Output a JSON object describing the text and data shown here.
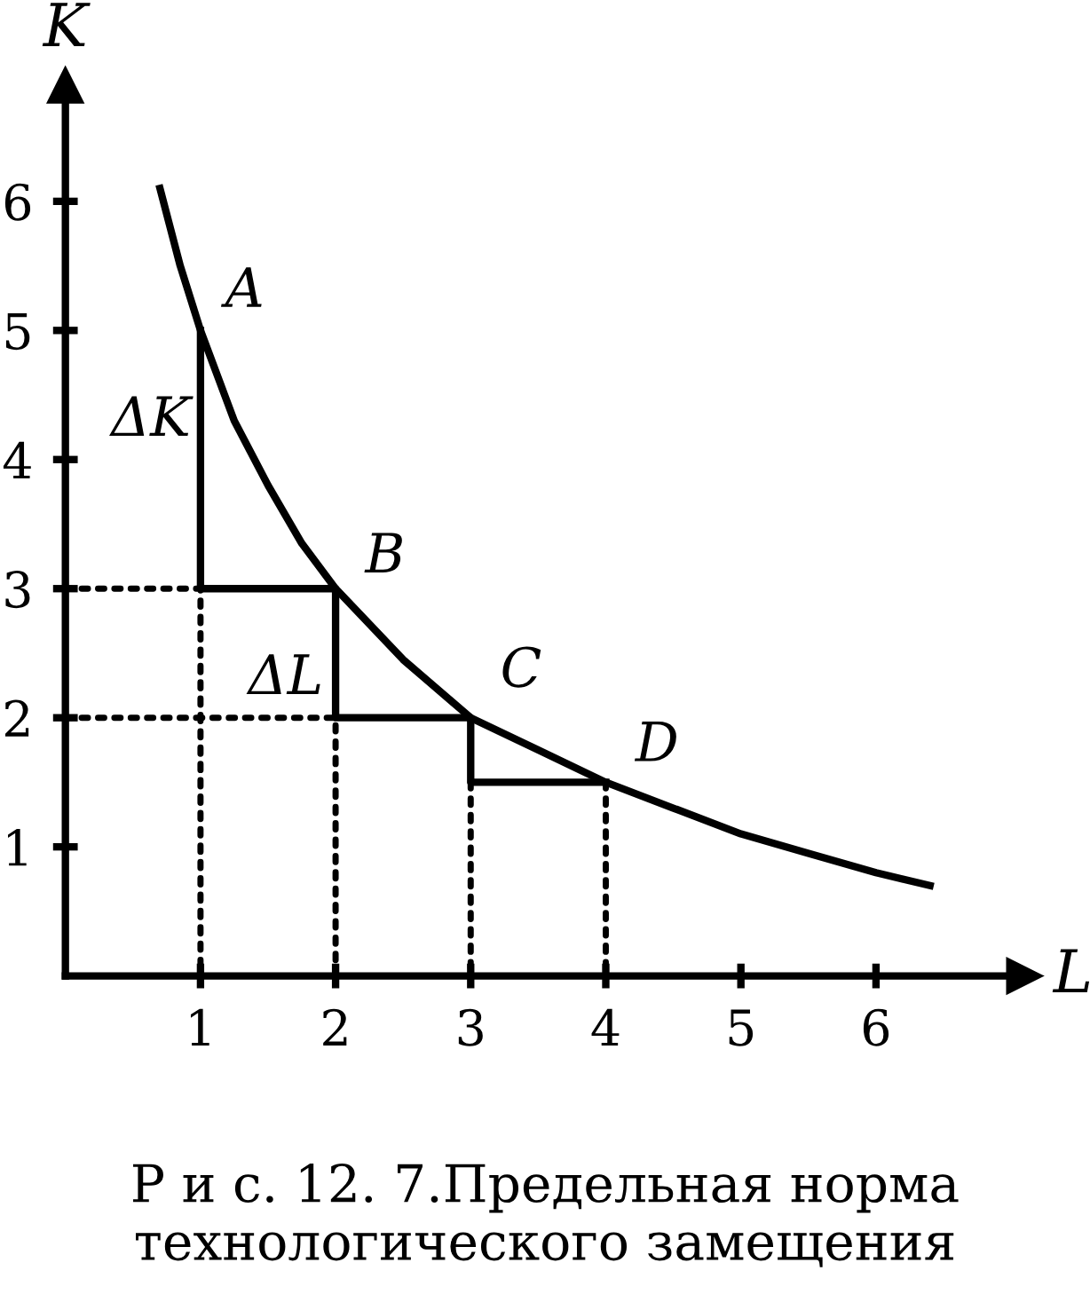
{
  "chart_data": {
    "type": "line",
    "title": "Р и с. 12. 7.Предельная норма\nтехнологического замещения",
    "xlabel": "L",
    "ylabel": "K",
    "xlim": [
      0,
      7.1
    ],
    "ylim": [
      0,
      6.9
    ],
    "xticks": [
      1,
      2,
      3,
      4,
      5,
      6
    ],
    "yticks": [
      1,
      2,
      3,
      4,
      5,
      6
    ],
    "grid": false,
    "marker": "none",
    "series": [
      {
        "color": "#000000",
        "line_style": "solid",
        "x": [
          0.7,
          0.85,
          1,
          1.25,
          1.5,
          1.75,
          2,
          2.5,
          3,
          3.5,
          4,
          4.5,
          5,
          5.5,
          6,
          6.4
        ],
        "values": [
          6.1,
          5.5,
          5,
          4.3,
          3.8,
          3.35,
          3,
          2.45,
          2,
          1.75,
          1.5,
          1.3,
          1.1,
          0.95,
          0.8,
          0.7
        ]
      },
      {
        "color": "#000000",
        "line_style": "solid",
        "x": [
          1,
          1,
          2,
          2,
          3,
          3,
          4
        ],
        "values": [
          5,
          3,
          3,
          2,
          2,
          1.5,
          1.5
        ]
      },
      {
        "color": "#000000",
        "line_style": "dotted",
        "x": [
          0,
          1,
          1
        ],
        "values": [
          3,
          3,
          0
        ]
      },
      {
        "color": "#000000",
        "line_style": "dotted",
        "x": [
          0,
          2,
          2
        ],
        "values": [
          2,
          2,
          0
        ]
      },
      {
        "color": "#000000",
        "line_style": "dotted",
        "x": [
          3,
          3
        ],
        "values": [
          1.5,
          0
        ]
      },
      {
        "color": "#000000",
        "line_style": "dotted",
        "x": [
          4,
          4
        ],
        "values": [
          1.5,
          0
        ]
      }
    ],
    "annotations": [
      {
        "text": "A",
        "x": 1,
        "y": 5
      },
      {
        "text": "B",
        "x": 2,
        "y": 3
      },
      {
        "text": "C",
        "x": 3,
        "y": 2
      },
      {
        "text": "D",
        "x": 4,
        "y": 1.5
      },
      {
        "text": "ΔK",
        "x": 1,
        "y": 4.3
      },
      {
        "text": "ΔL",
        "x": 2,
        "y": 2.3
      }
    ]
  }
}
